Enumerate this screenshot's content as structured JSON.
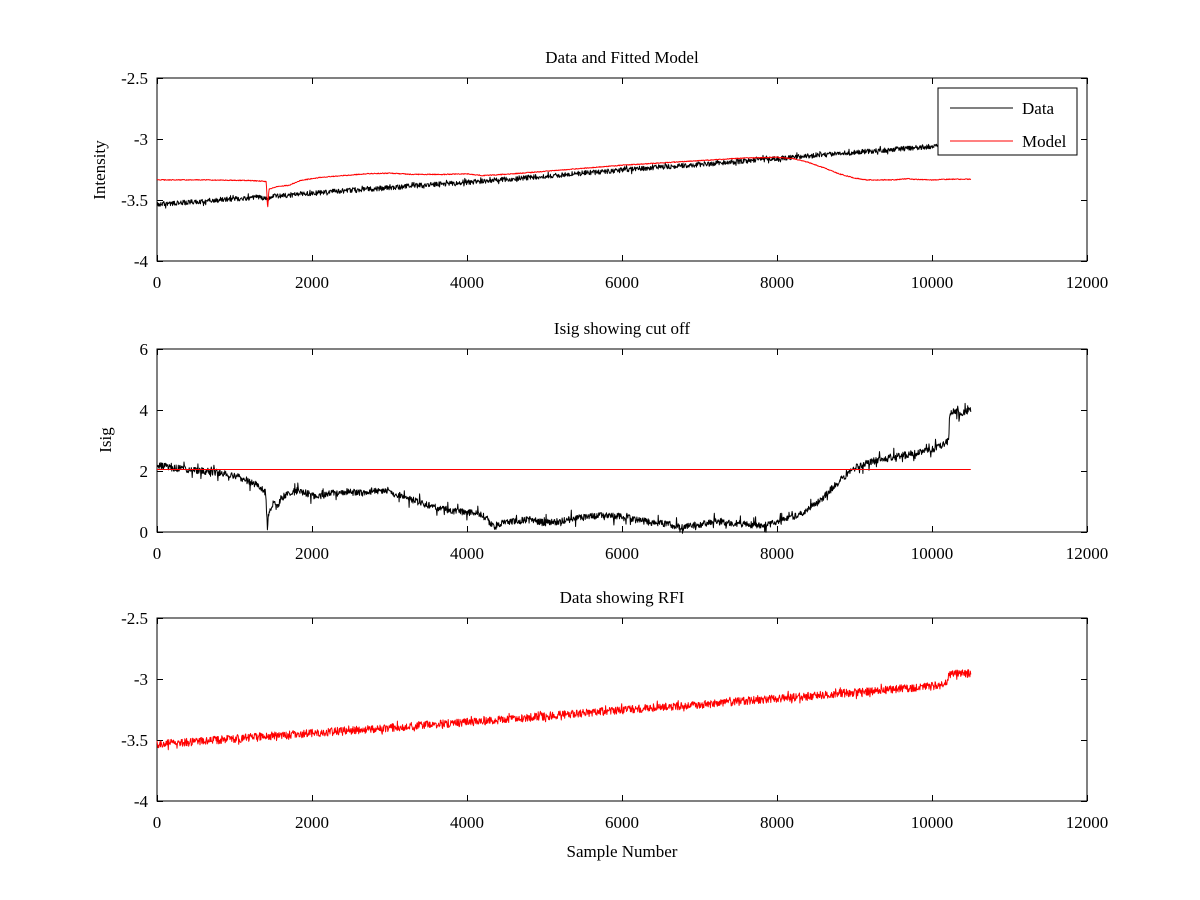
{
  "figure": {
    "background": "#ffffff",
    "axis_color": "#000000",
    "text_color": "#000000",
    "accent_red": "#ff0000"
  },
  "chart_data": [
    {
      "type": "line",
      "title": "Data and Fitted Model",
      "xlabel": "",
      "ylabel": "Intensity",
      "xlim": [
        0,
        12000
      ],
      "ylim": [
        -4,
        -2.5
      ],
      "xticks": [
        0,
        2000,
        4000,
        6000,
        8000,
        10000,
        12000
      ],
      "xtick_labels": [
        "0",
        "2000",
        "4000",
        "6000",
        "8000",
        "10000",
        "12000"
      ],
      "yticks": [
        -4,
        -3.5,
        -3,
        -2.5
      ],
      "ytick_labels": [
        "-4",
        "-3.5",
        "-3",
        "-2.5"
      ],
      "grid": false,
      "legend": {
        "position": "northeast",
        "entries": [
          {
            "label": "Data",
            "color": "#000000"
          },
          {
            "label": "Model",
            "color": "#ff0000"
          }
        ]
      },
      "series": [
        {
          "name": "Data",
          "color": "#000000",
          "noise": 0.02,
          "noise_spike": 1.9,
          "points": [
            [
              0,
              -3.535
            ],
            [
              500,
              -3.515
            ],
            [
              1000,
              -3.49
            ],
            [
              1350,
              -3.475
            ],
            [
              1430,
              -3.5
            ],
            [
              1500,
              -3.47
            ],
            [
              2000,
              -3.445
            ],
            [
              2500,
              -3.42
            ],
            [
              3000,
              -3.4
            ],
            [
              3500,
              -3.375
            ],
            [
              4000,
              -3.355
            ],
            [
              4500,
              -3.33
            ],
            [
              5000,
              -3.305
            ],
            [
              5500,
              -3.28
            ],
            [
              6000,
              -3.255
            ],
            [
              6500,
              -3.23
            ],
            [
              7000,
              -3.21
            ],
            [
              7500,
              -3.185
            ],
            [
              8000,
              -3.16
            ],
            [
              8500,
              -3.135
            ],
            [
              9000,
              -3.11
            ],
            [
              9500,
              -3.085
            ],
            [
              10000,
              -3.06
            ],
            [
              10500,
              -3.04
            ]
          ]
        },
        {
          "name": "Model",
          "color": "#ff0000",
          "noise": 0.0035,
          "noise_spike": 1,
          "points": [
            [
              0,
              -3.335
            ],
            [
              600,
              -3.335
            ],
            [
              1200,
              -3.34
            ],
            [
              1350,
              -3.345
            ],
            [
              1410,
              -3.35
            ],
            [
              1428,
              -3.58
            ],
            [
              1445,
              -3.41
            ],
            [
              1550,
              -3.39
            ],
            [
              1700,
              -3.38
            ],
            [
              1850,
              -3.34
            ],
            [
              2100,
              -3.315
            ],
            [
              2400,
              -3.3
            ],
            [
              2700,
              -3.285
            ],
            [
              3000,
              -3.28
            ],
            [
              3300,
              -3.29
            ],
            [
              3700,
              -3.29
            ],
            [
              4000,
              -3.285
            ],
            [
              4200,
              -3.3
            ],
            [
              4350,
              -3.295
            ],
            [
              4600,
              -3.285
            ],
            [
              4900,
              -3.27
            ],
            [
              5200,
              -3.255
            ],
            [
              5600,
              -3.235
            ],
            [
              6000,
              -3.215
            ],
            [
              6400,
              -3.2
            ],
            [
              6800,
              -3.185
            ],
            [
              7200,
              -3.17
            ],
            [
              7600,
              -3.155
            ],
            [
              8000,
              -3.15
            ],
            [
              8200,
              -3.16
            ],
            [
              8400,
              -3.19
            ],
            [
              8600,
              -3.235
            ],
            [
              8800,
              -3.285
            ],
            [
              9000,
              -3.32
            ],
            [
              9150,
              -3.335
            ],
            [
              9500,
              -3.335
            ],
            [
              9700,
              -3.325
            ],
            [
              9750,
              -3.33
            ],
            [
              10000,
              -3.335
            ],
            [
              10200,
              -3.33
            ],
            [
              10500,
              -3.33
            ]
          ]
        }
      ]
    },
    {
      "type": "line",
      "title": "Isig showing cut off",
      "xlabel": "",
      "ylabel": "Isig",
      "xlim": [
        0,
        12000
      ],
      "ylim": [
        0,
        6
      ],
      "xticks": [
        0,
        2000,
        4000,
        6000,
        8000,
        10000,
        12000
      ],
      "xtick_labels": [
        "0",
        "2000",
        "4000",
        "6000",
        "8000",
        "10000",
        "12000"
      ],
      "yticks": [
        0,
        2,
        4,
        6
      ],
      "ytick_labels": [
        "0",
        "2",
        "4",
        "6"
      ],
      "grid": false,
      "legend": null,
      "series": [
        {
          "name": "Isig",
          "color": "#000000",
          "noise": 0.11,
          "noise_spike": 2.7,
          "points": [
            [
              0,
              2.2
            ],
            [
              200,
              2.1
            ],
            [
              400,
              2.05
            ],
            [
              600,
              2.0
            ],
            [
              800,
              1.95
            ],
            [
              1000,
              1.85
            ],
            [
              1100,
              1.75
            ],
            [
              1250,
              1.6
            ],
            [
              1350,
              1.45
            ],
            [
              1400,
              1.3
            ],
            [
              1415,
              0.7
            ],
            [
              1425,
              0.15
            ],
            [
              1440,
              0.6
            ],
            [
              1500,
              0.95
            ],
            [
              1550,
              0.8
            ],
            [
              1600,
              1.1
            ],
            [
              1700,
              1.3
            ],
            [
              1800,
              1.35
            ],
            [
              1900,
              1.3
            ],
            [
              2000,
              1.2
            ],
            [
              2100,
              1.15
            ],
            [
              2200,
              1.25
            ],
            [
              2400,
              1.3
            ],
            [
              2600,
              1.3
            ],
            [
              2800,
              1.35
            ],
            [
              3000,
              1.3
            ],
            [
              3200,
              1.15
            ],
            [
              3400,
              0.95
            ],
            [
              3600,
              0.8
            ],
            [
              3800,
              0.7
            ],
            [
              4000,
              0.65
            ],
            [
              4200,
              0.55
            ],
            [
              4300,
              0.3
            ],
            [
              4350,
              0.15
            ],
            [
              4450,
              0.3
            ],
            [
              4600,
              0.35
            ],
            [
              4800,
              0.4
            ],
            [
              5000,
              0.3
            ],
            [
              5200,
              0.35
            ],
            [
              5400,
              0.45
            ],
            [
              5600,
              0.5
            ],
            [
              5800,
              0.55
            ],
            [
              6000,
              0.5
            ],
            [
              6200,
              0.4
            ],
            [
              6400,
              0.3
            ],
            [
              6600,
              0.25
            ],
            [
              6800,
              0.15
            ],
            [
              7000,
              0.25
            ],
            [
              7200,
              0.35
            ],
            [
              7400,
              0.3
            ],
            [
              7600,
              0.25
            ],
            [
              7800,
              0.2
            ],
            [
              8000,
              0.3
            ],
            [
              8100,
              0.4
            ],
            [
              8300,
              0.6
            ],
            [
              8500,
              0.9
            ],
            [
              8700,
              1.4
            ],
            [
              8900,
              1.9
            ],
            [
              9000,
              2.1
            ],
            [
              9200,
              2.3
            ],
            [
              9400,
              2.4
            ],
            [
              9600,
              2.5
            ],
            [
              9800,
              2.6
            ],
            [
              10000,
              2.7
            ],
            [
              10100,
              2.8
            ],
            [
              10200,
              2.95
            ],
            [
              10215,
              3.0
            ],
            [
              10230,
              3.9
            ],
            [
              10300,
              3.95
            ],
            [
              10400,
              3.9
            ],
            [
              10500,
              4.0
            ]
          ]
        },
        {
          "name": "Cut off threshold",
          "color": "#ff0000",
          "noise": 0,
          "noise_spike": 1,
          "points": [
            [
              0,
              2.05
            ],
            [
              10500,
              2.05
            ]
          ]
        }
      ]
    },
    {
      "type": "line",
      "title": "Data showing RFI",
      "xlabel": "Sample Number",
      "ylabel": "",
      "xlim": [
        0,
        12000
      ],
      "ylim": [
        -4,
        -2.5
      ],
      "xticks": [
        0,
        2000,
        4000,
        6000,
        8000,
        10000,
        12000
      ],
      "xtick_labels": [
        "0",
        "2000",
        "4000",
        "6000",
        "8000",
        "10000",
        "12000"
      ],
      "yticks": [
        -4,
        -3.5,
        -3,
        -2.5
      ],
      "ytick_labels": [
        "-4",
        "-3.5",
        "-3",
        "-2.5"
      ],
      "grid": false,
      "legend": null,
      "series": [
        {
          "name": "Data with RFI",
          "color": "#ff0000",
          "noise": 0.033,
          "noise_spike": 1.6,
          "points": [
            [
              0,
              -3.535
            ],
            [
              500,
              -3.515
            ],
            [
              1000,
              -3.49
            ],
            [
              1300,
              -3.47
            ],
            [
              1500,
              -3.465
            ],
            [
              2000,
              -3.445
            ],
            [
              2500,
              -3.42
            ],
            [
              3000,
              -3.4
            ],
            [
              3500,
              -3.375
            ],
            [
              4000,
              -3.355
            ],
            [
              4500,
              -3.33
            ],
            [
              5000,
              -3.305
            ],
            [
              5500,
              -3.28
            ],
            [
              6000,
              -3.255
            ],
            [
              6500,
              -3.23
            ],
            [
              7000,
              -3.21
            ],
            [
              7500,
              -3.185
            ],
            [
              8000,
              -3.16
            ],
            [
              8500,
              -3.135
            ],
            [
              9000,
              -3.11
            ],
            [
              9500,
              -3.085
            ],
            [
              10000,
              -3.06
            ],
            [
              10150,
              -3.045
            ],
            [
              10200,
              -3.035
            ],
            [
              10215,
              -2.97
            ],
            [
              10300,
              -2.96
            ],
            [
              10400,
              -2.955
            ],
            [
              10500,
              -2.95
            ]
          ]
        }
      ]
    }
  ]
}
